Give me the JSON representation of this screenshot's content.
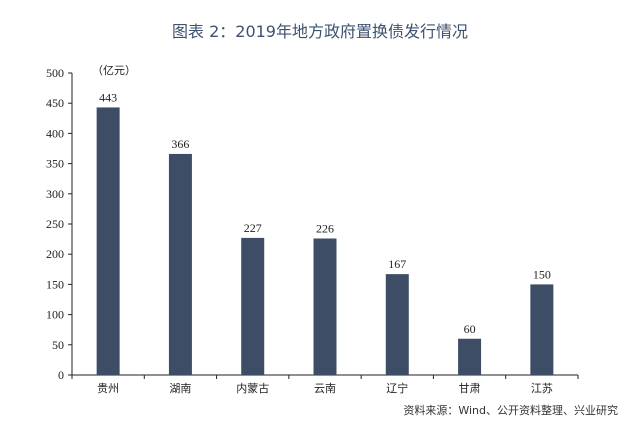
{
  "chart_data": {
    "type": "bar",
    "title": "图表 2：2019年地方政府置换债发行情况",
    "unit_label": "（亿元）",
    "categories": [
      "贵州",
      "湖南",
      "内蒙古",
      "云南",
      "辽宁",
      "甘肃",
      "江苏"
    ],
    "values": [
      443,
      366,
      227,
      226,
      167,
      60,
      150
    ],
    "ylim": [
      0,
      500
    ],
    "yticks": [
      0,
      50,
      100,
      150,
      200,
      250,
      300,
      350,
      400,
      450,
      500
    ],
    "xlabel": "",
    "ylabel": "",
    "grid": false,
    "bar_color": "#3d4d66",
    "source": "资料来源：Wind、公开资料整理、兴业研究"
  }
}
